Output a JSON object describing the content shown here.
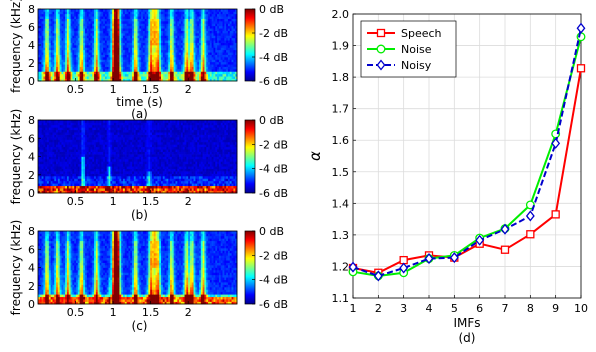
{
  "chart_data": [
    {
      "type": "heatmap",
      "panel_label": "(a)",
      "xlabel": "time (s)",
      "ylabel": "frequency (kHz)",
      "xticks": [
        "0.5",
        "1",
        "1.5",
        "2"
      ],
      "yticks": [
        "0",
        "2",
        "4",
        "6",
        "8"
      ],
      "xlim": [
        0,
        2.65
      ],
      "ylim": [
        0,
        8
      ],
      "colorbar": {
        "ticks": [
          "0 dB",
          "-2 dB",
          "-4 dB",
          "-6 dB"
        ],
        "range": [
          -6,
          0
        ]
      },
      "content": "speech"
    },
    {
      "type": "heatmap",
      "panel_label": "(b)",
      "xlabel": "",
      "ylabel": "frequency (kHz)",
      "xticks": [
        "0.5",
        "1",
        "1.5",
        "2"
      ],
      "yticks": [
        "0",
        "2",
        "4",
        "6",
        "8"
      ],
      "xlim": [
        0,
        2.65
      ],
      "ylim": [
        0,
        8
      ],
      "colorbar": {
        "ticks": [
          "0 dB",
          "-2 dB",
          "-4 dB",
          "-6 dB"
        ],
        "range": [
          -6,
          0
        ]
      },
      "content": "noise"
    },
    {
      "type": "heatmap",
      "panel_label": "(c)",
      "xlabel": "",
      "ylabel": "frequency (kHz)",
      "xticks": [
        "0.5",
        "1",
        "1.5",
        "2"
      ],
      "yticks": [
        "0",
        "2",
        "4",
        "6",
        "8"
      ],
      "xlim": [
        0,
        2.65
      ],
      "ylim": [
        0,
        8
      ],
      "colorbar": {
        "ticks": [
          "0 dB",
          "-2 dB",
          "-4 dB",
          "-6 dB"
        ],
        "range": [
          -6,
          0
        ]
      },
      "content": "noisy"
    },
    {
      "type": "line",
      "panel_label": "(d)",
      "xlabel": "IMFs",
      "ylabel": "α",
      "x": [
        1,
        2,
        3,
        4,
        5,
        6,
        7,
        8,
        9,
        10
      ],
      "xlim": [
        1,
        10
      ],
      "ylim": [
        1.1,
        2.0
      ],
      "yticks": [
        "1.1",
        "1.2",
        "1.3",
        "1.4",
        "1.5",
        "1.6",
        "1.7",
        "1.8",
        "1.9",
        "2.0"
      ],
      "grid": true,
      "legend_position": "top-left",
      "series": [
        {
          "name": "Speech",
          "color": "#ff0000",
          "marker": "square",
          "dash": "solid",
          "values": [
            1.195,
            1.18,
            1.22,
            1.235,
            1.228,
            1.272,
            1.253,
            1.302,
            1.365,
            1.828
          ]
        },
        {
          "name": "Noise",
          "color": "#00ee00",
          "marker": "circle",
          "dash": "solid",
          "values": [
            1.183,
            1.17,
            1.18,
            1.225,
            1.235,
            1.29,
            1.32,
            1.395,
            1.62,
            1.928
          ]
        },
        {
          "name": "Noisy",
          "color": "#0000cc",
          "marker": "diamond",
          "dash": "dashed",
          "values": [
            1.198,
            1.17,
            1.195,
            1.225,
            1.228,
            1.283,
            1.318,
            1.36,
            1.59,
            1.955
          ]
        }
      ]
    }
  ]
}
